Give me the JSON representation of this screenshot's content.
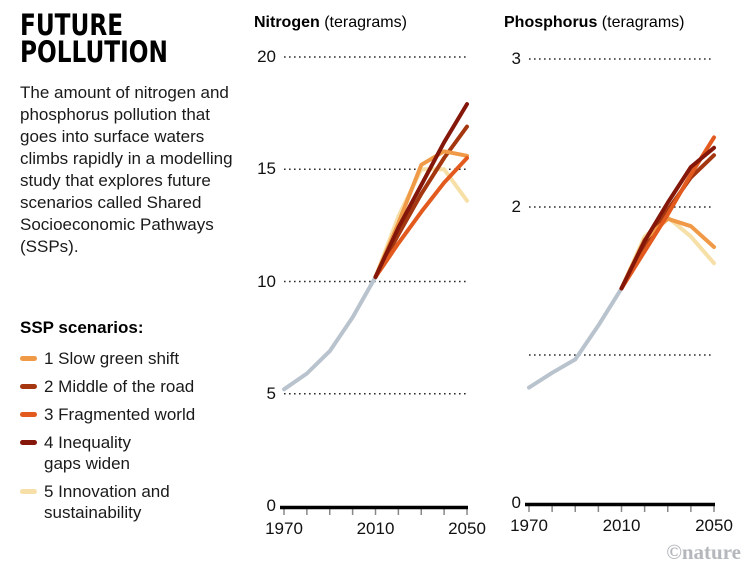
{
  "panel": {
    "title": "FUTURE\nPOLLUTION",
    "description": "The amount of nitrogen and phosphorus pollution that goes into surface waters climbs rapidly in a modelling study that explores future scenarios called Shared Socioeconomic Pathways (SSPs).",
    "legend_title": "SSP scenarios:",
    "legend": [
      {
        "label": "1 Slow green shift",
        "color": "#F09A48"
      },
      {
        "label": "2 Middle of the road",
        "color": "#A4370F"
      },
      {
        "label": "3 Fragmented world",
        "color": "#E25A1E"
      },
      {
        "label": "4 Inequality\ngaps widen",
        "color": "#841709"
      },
      {
        "label": "5 Innovation and\nsustainability",
        "color": "#F7E0A8"
      }
    ]
  },
  "footer": {
    "credit": "©nature"
  },
  "colors": {
    "historical_line": "#B9C3CE",
    "gridline": "#2b2b2b",
    "axis": "#000000",
    "tick": "#888888"
  },
  "chart_data": [
    {
      "type": "line",
      "title_bold": "Nitrogen",
      "title_unit": " (teragrams)",
      "xlabel": "",
      "ylabel": "teragrams",
      "xlim": [
        1970,
        2050
      ],
      "ylim": [
        0,
        20
      ],
      "grid": "dotted-horizontal",
      "gridline_values": [
        5,
        10,
        15,
        20
      ],
      "x_ticks": [
        1970,
        1980,
        1990,
        2000,
        2010,
        2020,
        2030,
        2040,
        2050
      ],
      "x_axis_labels": [
        {
          "year": 1970,
          "label": "1970"
        },
        {
          "year": 2010,
          "label": "2010"
        },
        {
          "year": 2050,
          "label": "2050"
        }
      ],
      "y_axis_labels": [
        {
          "value": 20,
          "label": "20"
        },
        {
          "value": 15,
          "label": "15"
        },
        {
          "value": 10,
          "label": "10"
        },
        {
          "value": 5,
          "label": "5"
        },
        {
          "value": 0,
          "label": "0"
        }
      ],
      "historical": {
        "name": "historical",
        "color": "#B9C3CE",
        "x": [
          1970,
          1980,
          1990,
          2000,
          2010
        ],
        "values": [
          5.2,
          5.9,
          6.9,
          8.4,
          10.2
        ]
      },
      "series": [
        {
          "name": "5 Innovation and sustainability",
          "color": "#F7E0A8",
          "x": [
            2010,
            2020,
            2030,
            2040,
            2050
          ],
          "values": [
            10.2,
            12.9,
            15.0,
            15.0,
            13.6
          ]
        },
        {
          "name": "2 Middle of the road",
          "color": "#A4370F",
          "x": [
            2010,
            2020,
            2030,
            2040,
            2050
          ],
          "values": [
            10.2,
            12.1,
            13.9,
            15.5,
            16.9
          ]
        },
        {
          "name": "1 Slow green shift",
          "color": "#F09A48",
          "x": [
            2010,
            2020,
            2030,
            2040,
            2050
          ],
          "values": [
            10.2,
            12.6,
            15.2,
            15.8,
            15.6
          ]
        },
        {
          "name": "3 Fragmented world",
          "color": "#E25A1E",
          "x": [
            2010,
            2020,
            2030,
            2040,
            2050
          ],
          "values": [
            10.2,
            11.7,
            13.1,
            14.4,
            15.5
          ]
        },
        {
          "name": "4 Inequality gaps widen",
          "color": "#841709",
          "x": [
            2010,
            2020,
            2030,
            2040,
            2050
          ],
          "values": [
            10.2,
            12.4,
            14.3,
            16.2,
            17.9
          ]
        }
      ]
    },
    {
      "type": "line",
      "title_bold": "Phosphorus",
      "title_unit": " (teragrams)",
      "xlabel": "",
      "ylabel": "teragrams",
      "xlim": [
        1970,
        2050
      ],
      "ylim": [
        0,
        3
      ],
      "grid": "dotted-horizontal",
      "gridline_values": [
        1,
        2,
        3
      ],
      "x_ticks": [
        1970,
        1980,
        1990,
        2000,
        2010,
        2020,
        2030,
        2040,
        2050
      ],
      "x_axis_labels": [
        {
          "year": 1970,
          "label": "1970"
        },
        {
          "year": 2010,
          "label": "2010"
        },
        {
          "year": 2050,
          "label": "2050"
        }
      ],
      "y_axis_labels": [
        {
          "value": 3,
          "label": "3"
        },
        {
          "value": 2,
          "label": "2"
        },
        {
          "value": 0,
          "label": "0"
        }
      ],
      "historical": {
        "name": "historical",
        "color": "#B9C3CE",
        "x": [
          1970,
          1980,
          1990,
          2000,
          2010
        ],
        "values": [
          0.78,
          0.88,
          0.97,
          1.2,
          1.45
        ]
      },
      "series": [
        {
          "name": "5 Innovation and sustainability",
          "color": "#F7E0A8",
          "x": [
            2010,
            2020,
            2030,
            2040,
            2050
          ],
          "values": [
            1.45,
            1.8,
            1.93,
            1.8,
            1.62
          ]
        },
        {
          "name": "2 Middle of the road",
          "color": "#A4370F",
          "x": [
            2010,
            2020,
            2030,
            2040,
            2050
          ],
          "values": [
            1.45,
            1.73,
            1.98,
            2.2,
            2.35
          ]
        },
        {
          "name": "1 Slow green shift",
          "color": "#F09A48",
          "x": [
            2010,
            2020,
            2030,
            2040,
            2050
          ],
          "values": [
            1.45,
            1.78,
            1.92,
            1.87,
            1.73
          ]
        },
        {
          "name": "3 Fragmented world",
          "color": "#E25A1E",
          "x": [
            2010,
            2020,
            2030,
            2040,
            2050
          ],
          "values": [
            1.45,
            1.7,
            1.95,
            2.22,
            2.47
          ]
        },
        {
          "name": "4 Inequality gaps widen",
          "color": "#841709",
          "x": [
            2010,
            2020,
            2030,
            2040,
            2050
          ],
          "values": [
            1.45,
            1.77,
            2.03,
            2.27,
            2.4
          ]
        }
      ]
    }
  ]
}
